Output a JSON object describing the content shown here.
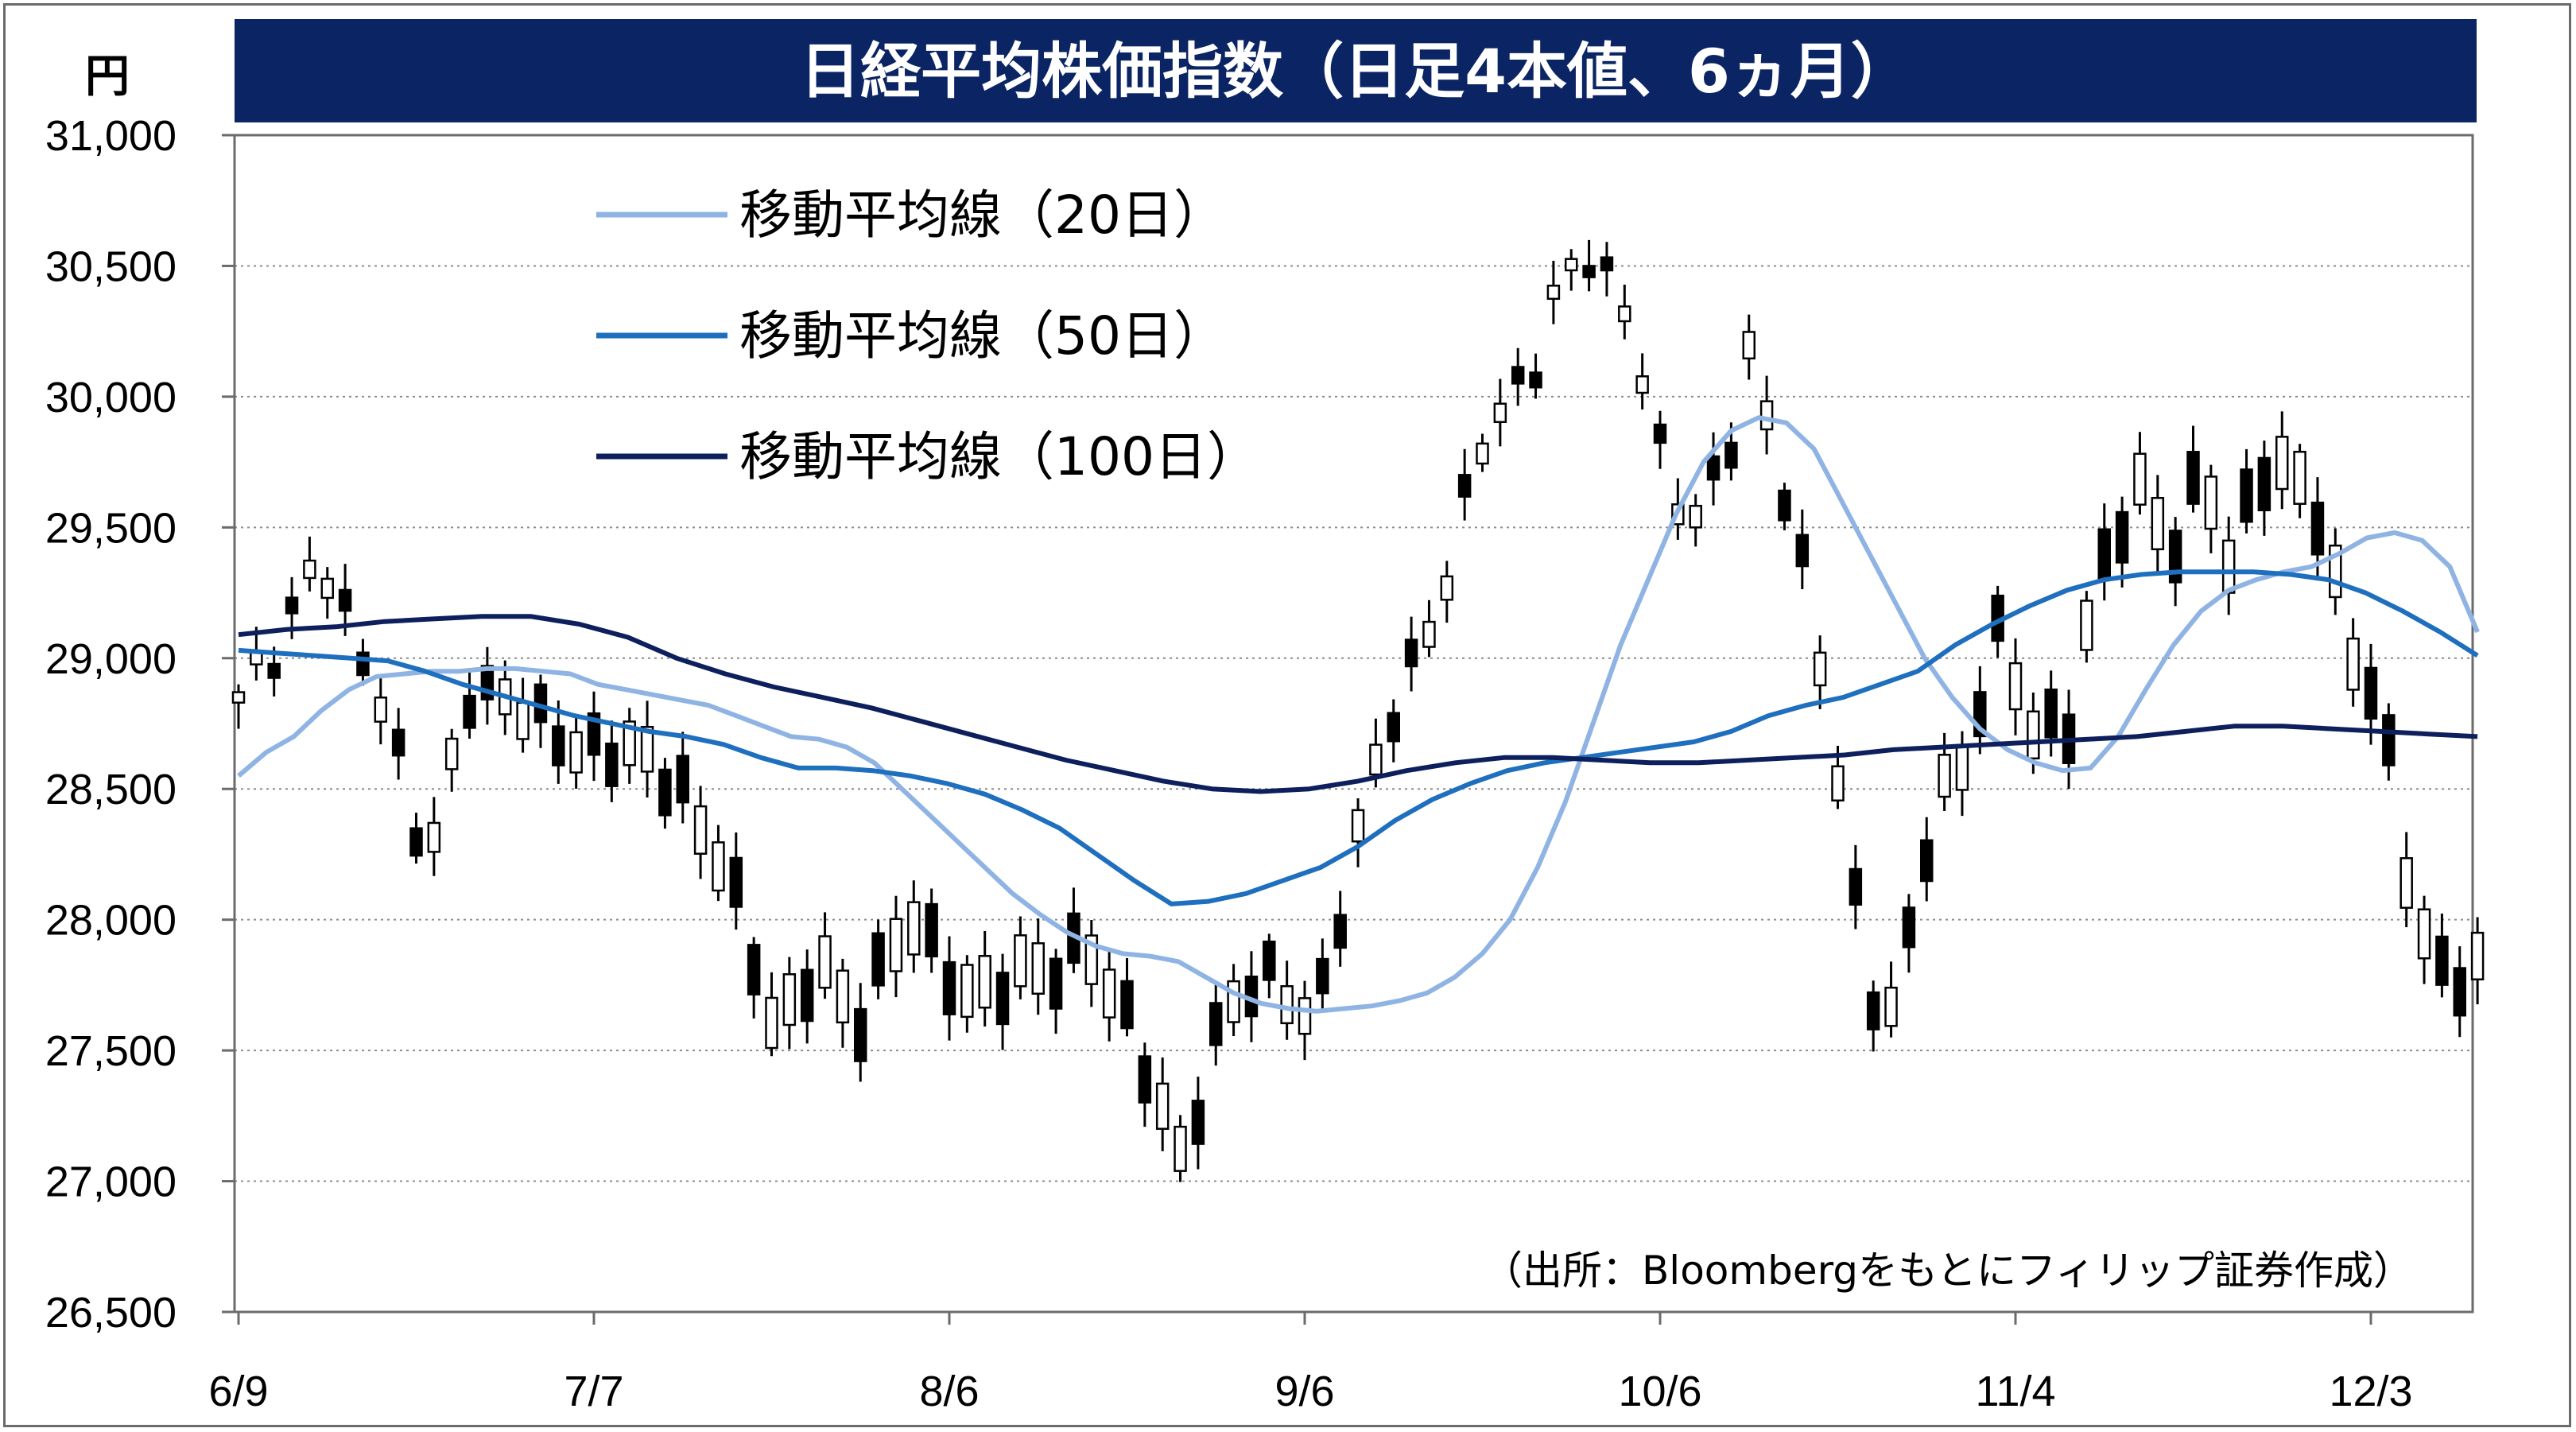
{
  "chart_data": {
    "type": "candlestick",
    "title": "日経平均株価指数（日足4本値、6ヵ月）",
    "unit": "円",
    "ylim": [
      26500,
      31000
    ],
    "y_ticks": [
      "31,000",
      "30,500",
      "30,000",
      "29,500",
      "29,000",
      "28,500",
      "28,000",
      "27,500",
      "27,000",
      "26,500"
    ],
    "y_tick_values": [
      31000,
      30500,
      30000,
      29500,
      29000,
      28500,
      28000,
      27500,
      27000,
      26500
    ],
    "x_labels": [
      "6/9",
      "7/7",
      "8/6",
      "9/6",
      "10/6",
      "11/4",
      "12/3"
    ],
    "x_label_index": [
      0,
      20,
      40,
      60,
      80,
      100,
      120
    ],
    "grid": "horizontal",
    "legend_position": "top-left",
    "source": "（出所：Bloombergをもとにフィリップ証券作成）",
    "colors": {
      "title_bg": "#0b2463",
      "ma20": "#8fb4e3",
      "ma50": "#1f6fbf",
      "ma100": "#0d1f5c",
      "grid": "#8c8c8c",
      "up_fill": "#ffffff",
      "down_fill": "#000000"
    },
    "series": [
      {
        "name": "移動平均線（20日）",
        "key": "ma20",
        "values": [
          28550,
          28640,
          28700,
          28800,
          28880,
          28930,
          28940,
          28950,
          28950,
          28960,
          28960,
          28950,
          28940,
          28900,
          28880,
          28860,
          28840,
          28820,
          28780,
          28740,
          28700,
          28690,
          28660,
          28600,
          28500,
          28400,
          28300,
          28200,
          28100,
          28020,
          27950,
          27900,
          27870,
          27860,
          27840,
          27780,
          27720,
          27680,
          27660,
          27650,
          27660,
          27670,
          27690,
          27720,
          27780,
          27870,
          28000,
          28200,
          28450,
          28750,
          29050,
          29300,
          29550,
          29750,
          29870,
          29920,
          29900,
          29800,
          29600,
          29400,
          29200,
          29000,
          28850,
          28730,
          28650,
          28600,
          28570,
          28580,
          28700,
          28880,
          29050,
          29180,
          29260,
          29300,
          29330,
          29350,
          29400,
          29460,
          29480,
          29450,
          29350,
          29100
        ]
      },
      {
        "name": "移動平均線（50日）",
        "key": "ma50",
        "values": [
          29030,
          29020,
          29010,
          29000,
          28990,
          28950,
          28900,
          28860,
          28820,
          28780,
          28750,
          28720,
          28700,
          28670,
          28620,
          28580,
          28580,
          28570,
          28550,
          28520,
          28480,
          28420,
          28350,
          28250,
          28150,
          28060,
          28070,
          28100,
          28150,
          28200,
          28280,
          28380,
          28460,
          28520,
          28570,
          28600,
          28620,
          28640,
          28660,
          28680,
          28720,
          28780,
          28820,
          28850,
          28900,
          28950,
          29050,
          29130,
          29200,
          29260,
          29300,
          29320,
          29330,
          29330,
          29330,
          29320,
          29300,
          29250,
          29180,
          29100,
          29010
        ]
      }
    ]
  },
  "ma100": {
    "name": "移動平均線（100日）"
  }
}
